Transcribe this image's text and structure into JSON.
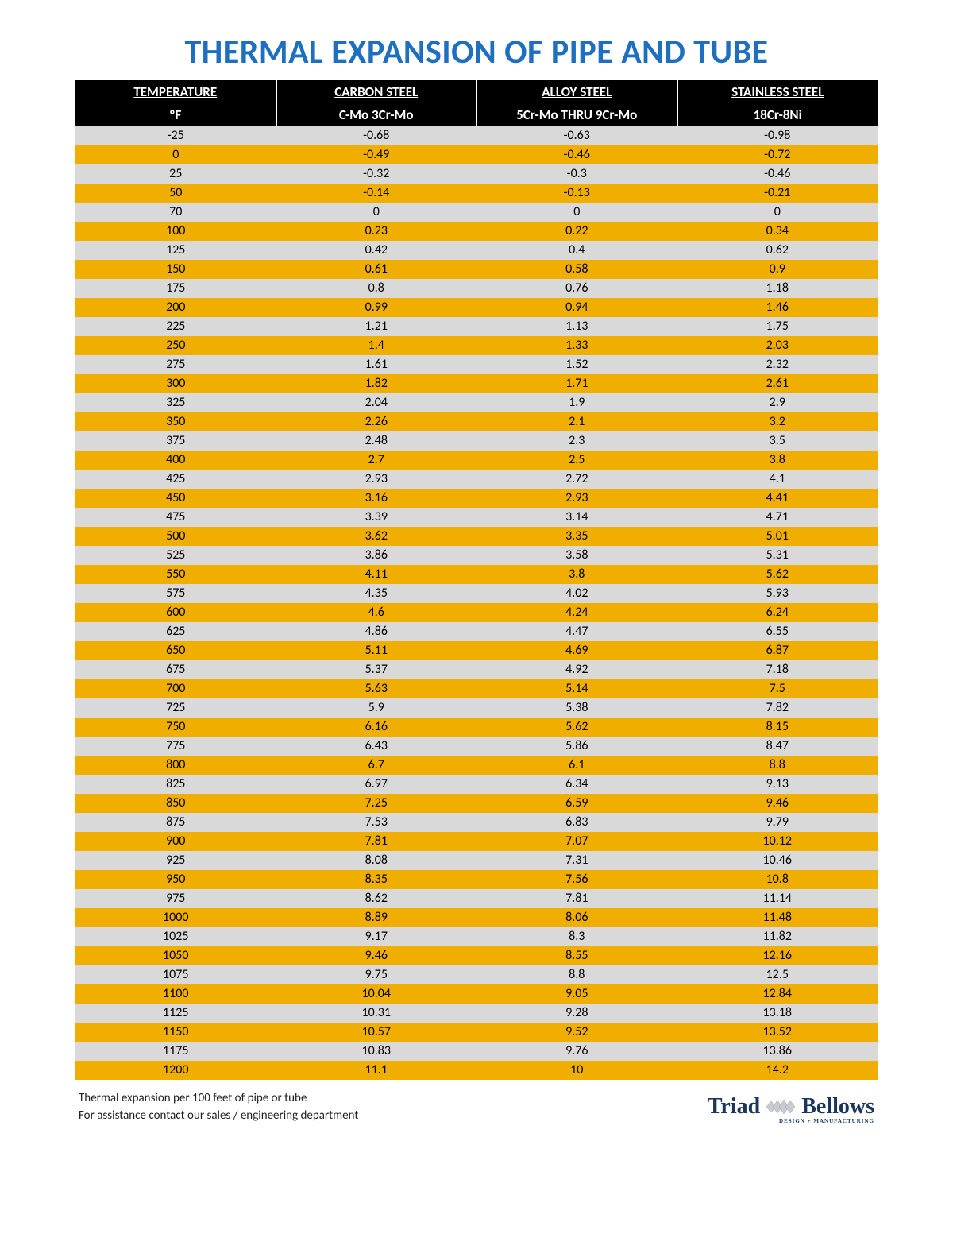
{
  "title": "THERMAL EXPANSION OF PIPE AND TUBE",
  "title_color": "#1f6fc0",
  "header_bg": "#000000",
  "header_fg": "#ffffff",
  "row_odd_bg": "#f0af00",
  "row_even_bg": "#d9d9d9",
  "columns_top": [
    "TEMPERATURE",
    "CARBON STEEL",
    "ALLOY STEEL",
    "STAINLESS STEEL"
  ],
  "columns_sub": [
    "ºF",
    "C-Mo 3Cr-Mo",
    "5Cr-Mo THRU 9Cr-Mo",
    "18Cr-8Ni"
  ],
  "col_widths_pct": [
    25,
    25,
    25,
    25
  ],
  "rows": [
    [
      "-25",
      "-0.68",
      "-0.63",
      "-0.98"
    ],
    [
      "0",
      "-0.49",
      "-0.46",
      "-0.72"
    ],
    [
      "25",
      "-0.32",
      "-0.3",
      "-0.46"
    ],
    [
      "50",
      "-0.14",
      "-0.13",
      "-0.21"
    ],
    [
      "70",
      "0",
      "0",
      "0"
    ],
    [
      "100",
      "0.23",
      "0.22",
      "0.34"
    ],
    [
      "125",
      "0.42",
      "0.4",
      "0.62"
    ],
    [
      "150",
      "0.61",
      "0.58",
      "0.9"
    ],
    [
      "175",
      "0.8",
      "0.76",
      "1.18"
    ],
    [
      "200",
      "0.99",
      "0.94",
      "1.46"
    ],
    [
      "225",
      "1.21",
      "1.13",
      "1.75"
    ],
    [
      "250",
      "1.4",
      "1.33",
      "2.03"
    ],
    [
      "275",
      "1.61",
      "1.52",
      "2.32"
    ],
    [
      "300",
      "1.82",
      "1.71",
      "2.61"
    ],
    [
      "325",
      "2.04",
      "1.9",
      "2.9"
    ],
    [
      "350",
      "2.26",
      "2.1",
      "3.2"
    ],
    [
      "375",
      "2.48",
      "2.3",
      "3.5"
    ],
    [
      "400",
      "2.7",
      "2.5",
      "3.8"
    ],
    [
      "425",
      "2.93",
      "2.72",
      "4.1"
    ],
    [
      "450",
      "3.16",
      "2.93",
      "4.41"
    ],
    [
      "475",
      "3.39",
      "3.14",
      "4.71"
    ],
    [
      "500",
      "3.62",
      "3.35",
      "5.01"
    ],
    [
      "525",
      "3.86",
      "3.58",
      "5.31"
    ],
    [
      "550",
      "4.11",
      "3.8",
      "5.62"
    ],
    [
      "575",
      "4.35",
      "4.02",
      "5.93"
    ],
    [
      "600",
      "4.6",
      "4.24",
      "6.24"
    ],
    [
      "625",
      "4.86",
      "4.47",
      "6.55"
    ],
    [
      "650",
      "5.11",
      "4.69",
      "6.87"
    ],
    [
      "675",
      "5.37",
      "4.92",
      "7.18"
    ],
    [
      "700",
      "5.63",
      "5.14",
      "7.5"
    ],
    [
      "725",
      "5.9",
      "5.38",
      "7.82"
    ],
    [
      "750",
      "6.16",
      "5.62",
      "8.15"
    ],
    [
      "775",
      "6.43",
      "5.86",
      "8.47"
    ],
    [
      "800",
      "6.7",
      "6.1",
      "8.8"
    ],
    [
      "825",
      "6.97",
      "6.34",
      "9.13"
    ],
    [
      "850",
      "7.25",
      "6.59",
      "9.46"
    ],
    [
      "875",
      "7.53",
      "6.83",
      "9.79"
    ],
    [
      "900",
      "7.81",
      "7.07",
      "10.12"
    ],
    [
      "925",
      "8.08",
      "7.31",
      "10.46"
    ],
    [
      "950",
      "8.35",
      "7.56",
      "10.8"
    ],
    [
      "975",
      "8.62",
      "7.81",
      "11.14"
    ],
    [
      "1000",
      "8.89",
      "8.06",
      "11.48"
    ],
    [
      "1025",
      "9.17",
      "8.3",
      "11.82"
    ],
    [
      "1050",
      "9.46",
      "8.55",
      "12.16"
    ],
    [
      "1075",
      "9.75",
      "8.8",
      "12.5"
    ],
    [
      "1100",
      "10.04",
      "9.05",
      "12.84"
    ],
    [
      "1125",
      "10.31",
      "9.28",
      "13.18"
    ],
    [
      "1150",
      "10.57",
      "9.52",
      "13.52"
    ],
    [
      "1175",
      "10.83",
      "9.76",
      "13.86"
    ],
    [
      "1200",
      "11.1",
      "10",
      "14.2"
    ]
  ],
  "footer": {
    "line1": "Thermal expansion per 100 feet of pipe or tube",
    "line2": "For assistance contact our sales / engineering department"
  },
  "logo": {
    "triad": "Triad",
    "bellows": "Bellows",
    "tagline": "DESIGN + MANUFACTURING",
    "color": "#1b365d",
    "accent": "#d0d3d8"
  }
}
